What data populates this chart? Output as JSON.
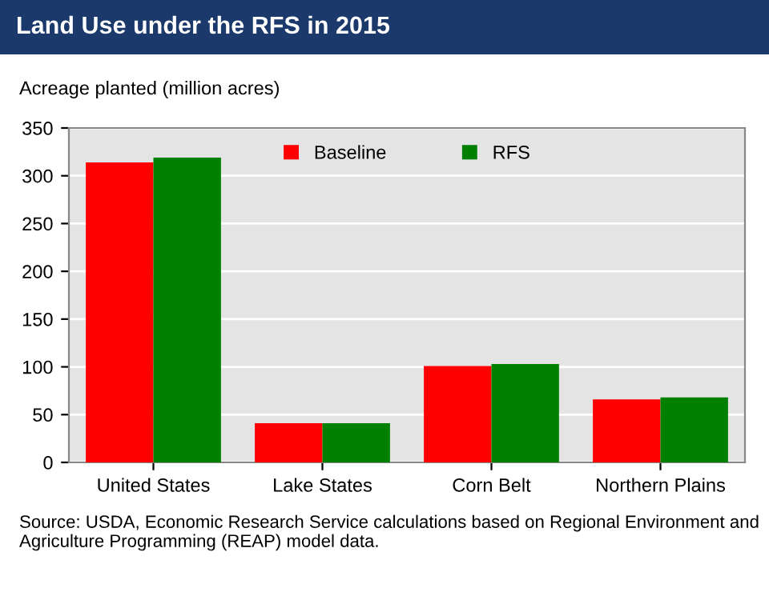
{
  "chart_data": {
    "type": "bar",
    "title": "Land Use under the RFS in 2015",
    "ylabel": "Acreage planted (million acres)",
    "categories": [
      "United States",
      "Lake States",
      "Corn Belt",
      "Northern Plains"
    ],
    "series": [
      {
        "name": "Baseline",
        "color": "#ff0000",
        "values": [
          314,
          41,
          101,
          66
        ]
      },
      {
        "name": "RFS",
        "color": "#008000",
        "values": [
          319,
          41,
          103,
          68
        ]
      }
    ],
    "ylim": [
      0,
      350
    ],
    "yticks": [
      0,
      50,
      100,
      150,
      200,
      250,
      300,
      350
    ],
    "grid": "y",
    "legend": "top",
    "annotations": [
      "Source: USDA, Economic Research Service calculations based on Regional Environment and Agriculture Programming (REAP) model data."
    ]
  }
}
